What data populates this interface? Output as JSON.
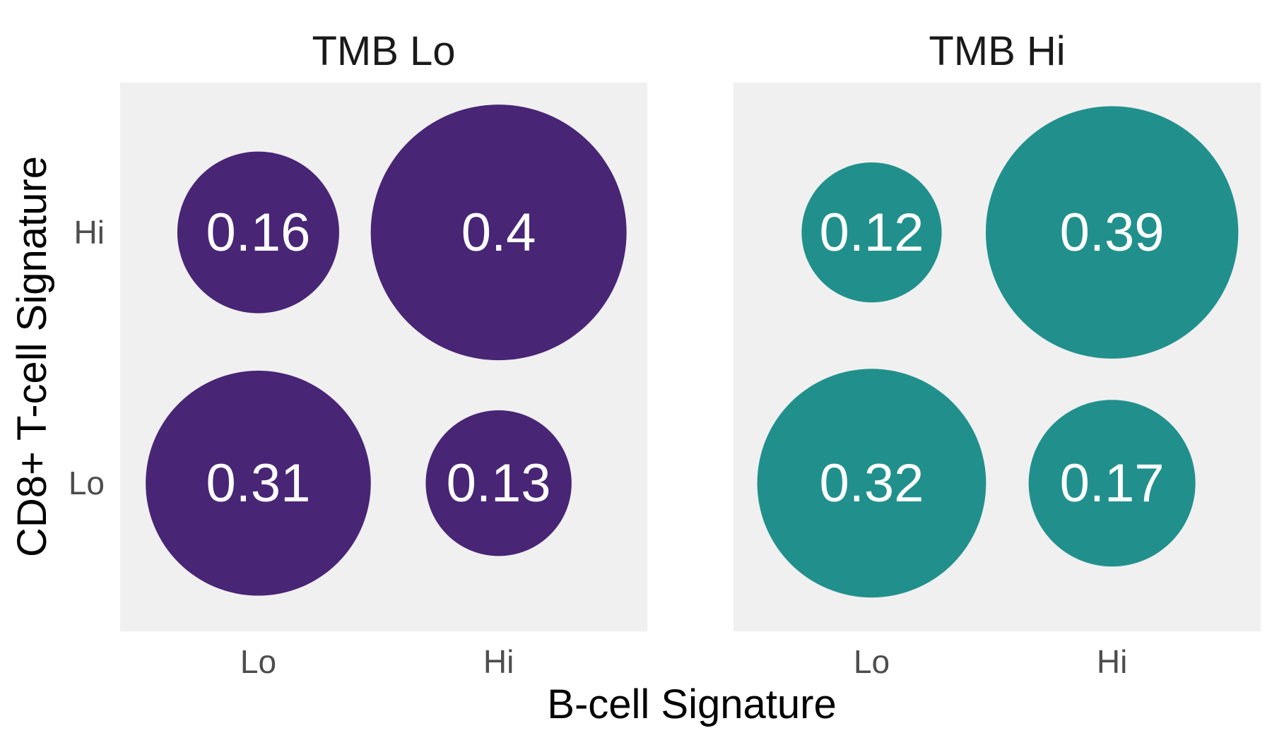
{
  "chart_data": {
    "type": "bubble",
    "xlabel": "B-cell Signature",
    "ylabel": "CD8+ T-cell Signature",
    "x_categories": [
      "Lo",
      "Hi"
    ],
    "y_categories": [
      "Lo",
      "Hi"
    ],
    "panels": [
      {
        "title": "TMB Lo",
        "color": "#482575",
        "points": [
          {
            "x": "Lo",
            "y": "Hi",
            "value": 0.16,
            "label": "0.16"
          },
          {
            "x": "Hi",
            "y": "Hi",
            "value": 0.4,
            "label": "0.4"
          },
          {
            "x": "Lo",
            "y": "Lo",
            "value": 0.31,
            "label": "0.31"
          },
          {
            "x": "Hi",
            "y": "Lo",
            "value": 0.13,
            "label": "0.13"
          }
        ]
      },
      {
        "title": "TMB Hi",
        "color": "#21908D",
        "points": [
          {
            "x": "Lo",
            "y": "Hi",
            "value": 0.12,
            "label": "0.12"
          },
          {
            "x": "Hi",
            "y": "Hi",
            "value": 0.39,
            "label": "0.39"
          },
          {
            "x": "Lo",
            "y": "Lo",
            "value": 0.32,
            "label": "0.32"
          },
          {
            "x": "Hi",
            "y": "Lo",
            "value": 0.17,
            "label": "0.17"
          }
        ]
      }
    ],
    "panel_background": "#F0F0F0",
    "label_color": "#FFFFFF",
    "tick_color": "#4D4D4D",
    "grid": false,
    "legend": "none"
  }
}
